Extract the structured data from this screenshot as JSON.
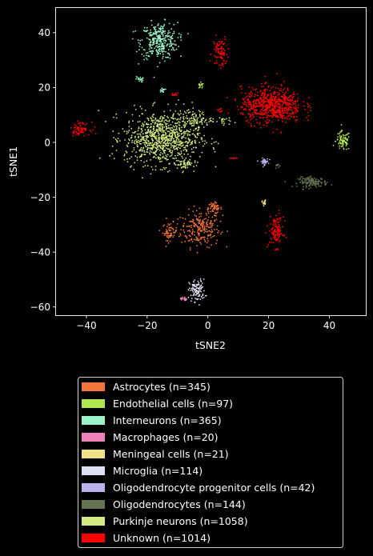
{
  "chart_data": {
    "type": "scatter",
    "xlabel": "tSNE2",
    "ylabel": "tSNE1",
    "xlim": [
      -50,
      52
    ],
    "ylim": [
      -63,
      49
    ],
    "xticks": [
      -40,
      -20,
      0,
      20,
      40
    ],
    "yticks": [
      -60,
      -40,
      -20,
      0,
      20,
      40
    ],
    "legend_position": "bottom",
    "series": [
      {
        "name": "Astrocytes (n=345)",
        "color": "#f4733a",
        "clusters": [
          {
            "cx": -2.5,
            "cy": -31.5,
            "sx": 3.2,
            "sy": 3.3,
            "n": 230
          },
          {
            "cx": -12.5,
            "cy": -32.5,
            "sx": 1.2,
            "sy": 1.6,
            "n": 60
          },
          {
            "cx": 2.0,
            "cy": -24.0,
            "sx": 1.3,
            "sy": 1.0,
            "n": 55
          }
        ]
      },
      {
        "name": "Endothelial cells (n=97)",
        "color": "#b0e54e",
        "clusters": [
          {
            "cx": 44.5,
            "cy": 0.5,
            "sx": 1.2,
            "sy": 1.8,
            "n": 80
          },
          {
            "cx": -2.5,
            "cy": 20.5,
            "sx": 0.6,
            "sy": 0.6,
            "n": 17
          }
        ]
      },
      {
        "name": "Interneurons (n=365)",
        "color": "#9af2c6",
        "clusters": [
          {
            "cx": -16.0,
            "cy": 37.0,
            "sx": 3.0,
            "sy": 3.3,
            "n": 330
          },
          {
            "cx": -22.5,
            "cy": 23.0,
            "sx": 0.6,
            "sy": 0.5,
            "n": 20
          },
          {
            "cx": -15.0,
            "cy": 19.0,
            "sx": 0.5,
            "sy": 0.4,
            "n": 15
          }
        ]
      },
      {
        "name": "Macrophages (n=20)",
        "color": "#ee82b8",
        "clusters": [
          {
            "cx": -8.0,
            "cy": -57.0,
            "sx": 0.5,
            "sy": 0.4,
            "n": 20
          }
        ]
      },
      {
        "name": "Meningeal cells (n=21)",
        "color": "#f1e189",
        "clusters": [
          {
            "cx": 18.5,
            "cy": -22.0,
            "sx": 0.3,
            "sy": 0.5,
            "n": 21
          }
        ]
      },
      {
        "name": "Microglia (n=114)",
        "color": "#dedef4",
        "clusters": [
          {
            "cx": -3.5,
            "cy": -54.0,
            "sx": 1.3,
            "sy": 2.0,
            "n": 114
          }
        ]
      },
      {
        "name": "Oligodendrocyte progenitor cells (n=42)",
        "color": "#b8b1ec",
        "clusters": [
          {
            "cx": 18.5,
            "cy": -7.0,
            "sx": 0.7,
            "sy": 0.6,
            "n": 42
          }
        ]
      },
      {
        "name": "Oligodendrocytes (n=144)",
        "color": "#647352",
        "clusters": [
          {
            "cx": 34.5,
            "cy": -14.5,
            "sx": 2.4,
            "sy": 0.9,
            "n": 134
          },
          {
            "cx": 23.0,
            "cy": -8.5,
            "sx": 0.5,
            "sy": 0.4,
            "n": 10
          }
        ]
      },
      {
        "name": "Purkinje neurons (n=1058)",
        "color": "#d4ea80",
        "clusters": [
          {
            "cx": -15.0,
            "cy": 1.5,
            "sx": 6.2,
            "sy": 4.8,
            "n": 900
          },
          {
            "cx": -4.5,
            "cy": 8.5,
            "sx": 3.0,
            "sy": 1.5,
            "n": 90
          },
          {
            "cx": -8.0,
            "cy": -8.0,
            "sx": 1.5,
            "sy": 1.0,
            "n": 50
          },
          {
            "cx": 5.0,
            "cy": 8.0,
            "sx": 1.2,
            "sy": 0.8,
            "n": 18
          }
        ]
      },
      {
        "name": "Unknown (n=1014)",
        "color": "#ff0000",
        "clusters": [
          {
            "cx": 21.0,
            "cy": 13.5,
            "sx": 5.0,
            "sy": 3.2,
            "n": 700
          },
          {
            "cx": 4.0,
            "cy": 33.0,
            "sx": 1.2,
            "sy": 2.8,
            "n": 90
          },
          {
            "cx": -42.0,
            "cy": 5.0,
            "sx": 1.6,
            "sy": 1.1,
            "n": 75
          },
          {
            "cx": 22.5,
            "cy": -32.5,
            "sx": 1.2,
            "sy": 2.8,
            "n": 120
          },
          {
            "cx": -11.0,
            "cy": 17.5,
            "sx": 0.6,
            "sy": 0.4,
            "n": 12
          },
          {
            "cx": 4.0,
            "cy": 11.5,
            "sx": 0.4,
            "sy": 0.4,
            "n": 9
          },
          {
            "cx": 8.5,
            "cy": -5.8,
            "sx": 0.5,
            "sy": 0.1,
            "n": 8
          }
        ]
      }
    ]
  }
}
